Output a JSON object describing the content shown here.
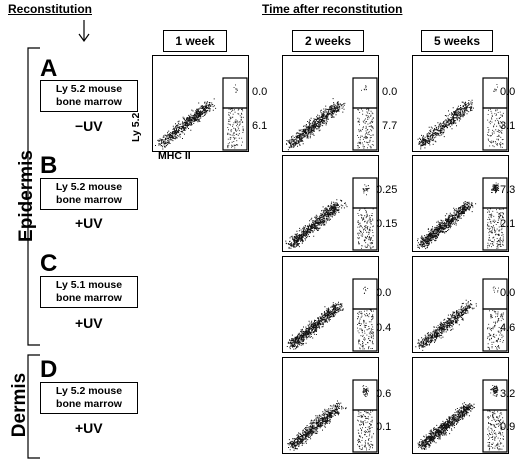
{
  "header": {
    "reconstitution": "Reconstitution",
    "time_after": "Time after reconstitution"
  },
  "columns": [
    "1 week",
    "2 weeks",
    "5 weeks"
  ],
  "sections": {
    "epidermis": "Epidermis",
    "dermis": "Dermis"
  },
  "axis": {
    "y": "Ly 5.2",
    "x": "MHC II"
  },
  "rows": [
    {
      "letter": "A",
      "line1": "Ly 5.2 mouse",
      "line2": "bone marrow",
      "uv": "−UV",
      "panels": [
        {
          "week": "1 week",
          "upper": "0.0",
          "lower": "6.1"
        },
        {
          "week": "2 weeks",
          "upper": "0.0",
          "lower": "7.7"
        },
        {
          "week": "5 weeks",
          "upper": "0.0",
          "lower": "3.1"
        }
      ]
    },
    {
      "letter": "B",
      "line1": "Ly 5.2 mouse",
      "line2": "bone marrow",
      "uv": "+UV",
      "panels": [
        {
          "week": "2 weeks",
          "upper": "0.25",
          "lower": "0.15"
        },
        {
          "week": "5 weeks",
          "upper": "7.3",
          "lower": "2.1"
        }
      ]
    },
    {
      "letter": "C",
      "line1": "Ly 5.1 mouse",
      "line2": "bone marrow",
      "uv": "+UV",
      "panels": [
        {
          "week": "2 weeks",
          "upper": "0.0",
          "lower": "0.4"
        },
        {
          "week": "5 weeks",
          "upper": "0.0",
          "lower": "4.6"
        }
      ]
    },
    {
      "letter": "D",
      "line1": "Ly 5.2 mouse",
      "line2": "bone marrow",
      "uv": "+UV",
      "panels": [
        {
          "week": "2 weeks",
          "upper": "0.6",
          "lower": "0.1"
        },
        {
          "week": "5 weeks",
          "upper": "3.2",
          "lower": "0.9"
        }
      ]
    }
  ]
}
